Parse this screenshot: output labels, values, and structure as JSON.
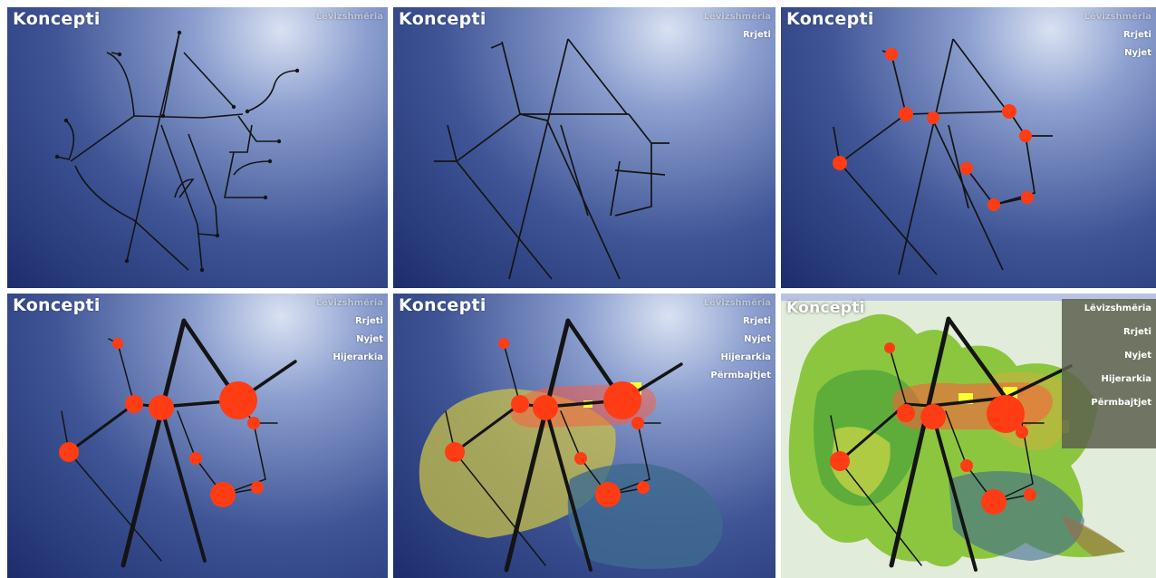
{
  "panels": [
    {
      "title": "Koncepti",
      "legend": [
        "Lëvizshmëria"
      ]
    },
    {
      "title": "Koncepti",
      "legend": [
        "Lëvizshmëria",
        "Rrjeti"
      ]
    },
    {
      "title": "Koncepti",
      "legend": [
        "Lëvizshmëria",
        "Rrjeti",
        "Nyjet"
      ]
    },
    {
      "title": "Koncepti",
      "legend": [
        "Lëvizshmëria",
        "Rrjeti",
        "Nyjet",
        "Hijerarkia"
      ]
    },
    {
      "title": "Koncepti",
      "legend": [
        "Lëvizshmëria",
        "Rrjeti",
        "Nyjet",
        "Hijerarkia",
        "Përmbajtjet"
      ]
    },
    {
      "title": "Koncepti",
      "legend": [
        "Lëvizshmëria",
        "Rrjeti",
        "Nyjet",
        "Hijerarkia",
        "Përmbajtjet"
      ]
    }
  ],
  "colors": {
    "node": "#ff3c14",
    "line": "#141414",
    "yellow_zone": "#c8c04a",
    "blue_zone": "#3e6a8f",
    "hot_zone": "#ff5a3c",
    "highlight": "#ffff33"
  }
}
